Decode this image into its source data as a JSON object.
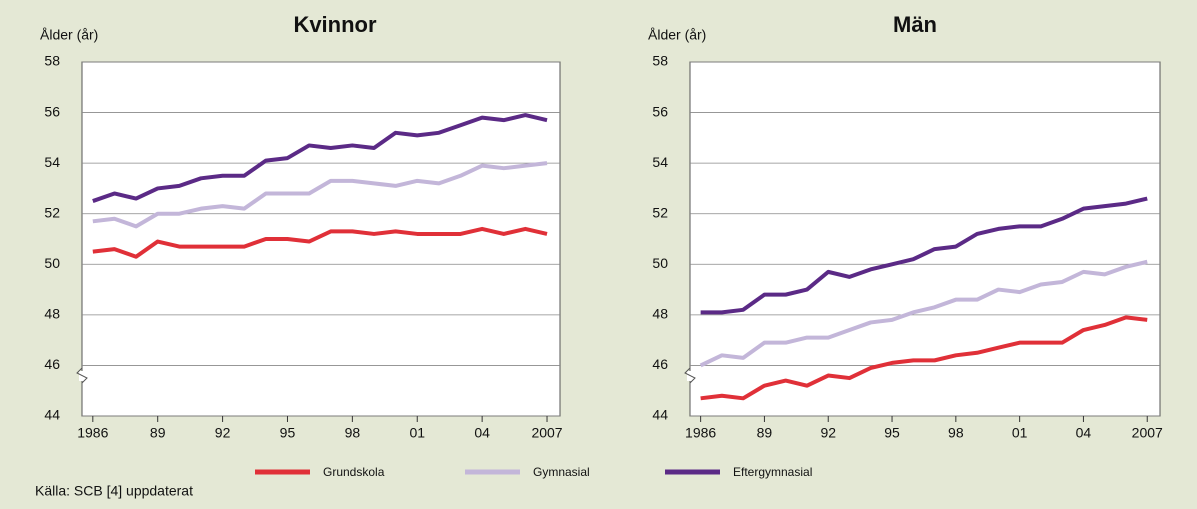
{
  "chart_data": [
    {
      "type": "line",
      "title": "Kvinnor",
      "y_label": "Ålder (år)",
      "x": [
        1986,
        1987,
        1988,
        1989,
        1990,
        1991,
        1992,
        1993,
        1994,
        1995,
        1996,
        1997,
        1998,
        1999,
        2000,
        2001,
        2002,
        2003,
        2004,
        2005,
        2006,
        2007
      ],
      "xlim": [
        1985.5,
        2007.6
      ],
      "xticks": [
        1986,
        {
          "value": 1989,
          "label": "89"
        },
        {
          "value": 1992,
          "label": "92"
        },
        {
          "value": 1995,
          "label": "95"
        },
        {
          "value": 1998,
          "label": "98"
        },
        {
          "value": 2001,
          "label": "01"
        },
        {
          "value": 2004,
          "label": "04"
        },
        2007
      ],
      "ylim": [
        44,
        58
      ],
      "yticks": [
        44,
        46,
        48,
        50,
        52,
        54,
        56,
        58
      ],
      "grid": true,
      "series": [
        {
          "name": "Grundskola",
          "color": "#e03038",
          "values": [
            50.5,
            50.6,
            50.3,
            50.9,
            50.7,
            50.7,
            50.7,
            50.7,
            51.0,
            51.0,
            50.9,
            51.3,
            51.3,
            51.2,
            51.3,
            51.2,
            51.2,
            51.2,
            51.4,
            51.2,
            51.4,
            51.2
          ]
        },
        {
          "name": "Gymnasial",
          "color": "#c3b6d9",
          "values": [
            51.7,
            51.8,
            51.5,
            52.0,
            52.0,
            52.2,
            52.3,
            52.2,
            52.8,
            52.8,
            52.8,
            53.3,
            53.3,
            53.2,
            53.1,
            53.3,
            53.2,
            53.5,
            53.9,
            53.8,
            53.9,
            54.0
          ]
        },
        {
          "name": "Eftergymnasial",
          "color": "#5b2a86",
          "values": [
            52.5,
            52.8,
            52.6,
            53.0,
            53.1,
            53.4,
            53.5,
            53.5,
            54.1,
            54.2,
            54.7,
            54.6,
            54.7,
            54.6,
            55.2,
            55.1,
            55.2,
            55.5,
            55.8,
            55.7,
            55.9,
            55.7
          ]
        }
      ]
    },
    {
      "type": "line",
      "title": "Män",
      "y_label": "Ålder (år)",
      "x": [
        1986,
        1987,
        1988,
        1989,
        1990,
        1991,
        1992,
        1993,
        1994,
        1995,
        1996,
        1997,
        1998,
        1999,
        2000,
        2001,
        2002,
        2003,
        2004,
        2005,
        2006,
        2007
      ],
      "xlim": [
        1985.5,
        2007.6
      ],
      "xticks": [
        1986,
        {
          "value": 1989,
          "label": "89"
        },
        {
          "value": 1992,
          "label": "92"
        },
        {
          "value": 1995,
          "label": "95"
        },
        {
          "value": 1998,
          "label": "98"
        },
        {
          "value": 2001,
          "label": "01"
        },
        {
          "value": 2004,
          "label": "04"
        },
        2007
      ],
      "ylim": [
        44,
        58
      ],
      "yticks": [
        44,
        46,
        48,
        50,
        52,
        54,
        56,
        58
      ],
      "grid": true,
      "series": [
        {
          "color": "#e03038",
          "values": [
            44.7,
            44.8,
            44.7,
            45.2,
            45.4,
            45.2,
            45.6,
            45.5,
            45.9,
            46.1,
            46.2,
            46.2,
            46.4,
            46.5,
            46.7,
            46.9,
            46.9,
            46.9,
            47.4,
            47.6,
            47.9,
            47.8
          ]
        },
        {
          "color": "#c3b6d9",
          "values": [
            46.0,
            46.4,
            46.3,
            46.9,
            46.9,
            47.1,
            47.1,
            47.4,
            47.7,
            47.8,
            48.1,
            48.3,
            48.6,
            48.6,
            49.0,
            48.9,
            49.2,
            49.3,
            49.7,
            49.6,
            49.9,
            50.1
          ]
        },
        {
          "color": "#5b2a86",
          "values": [
            48.1,
            48.1,
            48.2,
            48.8,
            48.8,
            49.0,
            49.7,
            49.5,
            49.8,
            50.0,
            50.2,
            50.6,
            50.7,
            51.2,
            51.4,
            51.5,
            51.5,
            51.8,
            52.2,
            52.3,
            52.4,
            52.6
          ]
        }
      ]
    }
  ],
  "source": "Källa: SCB [4] uppdaterat"
}
